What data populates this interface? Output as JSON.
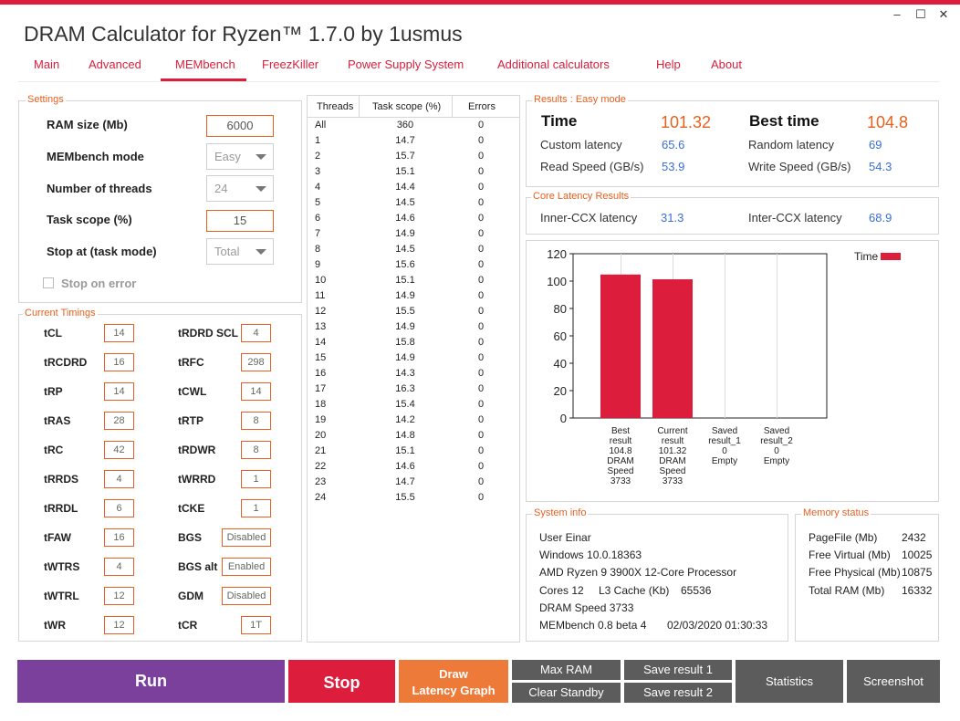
{
  "app": {
    "title": "DRAM Calculator for Ryzen™ 1.7.0 by 1usmus"
  },
  "window": {
    "minimize": "–",
    "maximize": "☐",
    "close": "✕"
  },
  "nav": [
    "Main",
    "Advanced",
    "MEMbench",
    "FreezKiller",
    "Power Supply System",
    "Additional calculators",
    "Help",
    "About"
  ],
  "settings": {
    "group_label": "Settings",
    "ram_size_label": "RAM size (Mb)",
    "ram_size": "6000",
    "mode_label": "MEMbench mode",
    "mode": "Easy",
    "threads_label": "Number of threads",
    "threads": "24",
    "scope_label": "Task scope (%)",
    "scope": "15",
    "stop_label": "Stop at (task mode)",
    "stop": "Total",
    "stop_on_error": "Stop on error"
  },
  "timings": {
    "group_label": "Current Timings",
    "left": [
      {
        "name": "tCL",
        "value": "14"
      },
      {
        "name": "tRCDRD",
        "value": "16"
      },
      {
        "name": "tRP",
        "value": "14"
      },
      {
        "name": "tRAS",
        "value": "28"
      },
      {
        "name": "tRC",
        "value": "42"
      },
      {
        "name": "tRRDS",
        "value": "4"
      },
      {
        "name": "tRRDL",
        "value": "6"
      },
      {
        "name": "tFAW",
        "value": "16"
      },
      {
        "name": "tWTRS",
        "value": "4"
      },
      {
        "name": "tWTRL",
        "value": "12"
      },
      {
        "name": "tWR",
        "value": "12"
      }
    ],
    "right": [
      {
        "name": "tRDRD SCL",
        "value": "4"
      },
      {
        "name": "tRFC",
        "value": "298"
      },
      {
        "name": "tCWL",
        "value": "14"
      },
      {
        "name": "tRTP",
        "value": "8"
      },
      {
        "name": "tRDWR",
        "value": "8"
      },
      {
        "name": "tWRRD",
        "value": "1"
      },
      {
        "name": "tCKE",
        "value": "1"
      },
      {
        "name": "BGS",
        "value": "Disabled"
      },
      {
        "name": "BGS alt",
        "value": "Enabled"
      },
      {
        "name": "GDM",
        "value": "Disabled"
      },
      {
        "name": "tCR",
        "value": "1T"
      }
    ]
  },
  "threads_table": {
    "headers": [
      "Threads",
      "Task scope (%)",
      "Errors"
    ],
    "rows": [
      [
        "All",
        "360",
        "0"
      ],
      [
        "1",
        "14.7",
        "0"
      ],
      [
        "2",
        "15.7",
        "0"
      ],
      [
        "3",
        "15.1",
        "0"
      ],
      [
        "4",
        "14.4",
        "0"
      ],
      [
        "5",
        "14.5",
        "0"
      ],
      [
        "6",
        "14.6",
        "0"
      ],
      [
        "7",
        "14.9",
        "0"
      ],
      [
        "8",
        "14.5",
        "0"
      ],
      [
        "9",
        "15.6",
        "0"
      ],
      [
        "10",
        "15.1",
        "0"
      ],
      [
        "11",
        "14.9",
        "0"
      ],
      [
        "12",
        "15.5",
        "0"
      ],
      [
        "13",
        "14.9",
        "0"
      ],
      [
        "14",
        "15.8",
        "0"
      ],
      [
        "15",
        "14.9",
        "0"
      ],
      [
        "16",
        "14.3",
        "0"
      ],
      [
        "17",
        "16.3",
        "0"
      ],
      [
        "18",
        "15.4",
        "0"
      ],
      [
        "19",
        "14.2",
        "0"
      ],
      [
        "20",
        "14.8",
        "0"
      ],
      [
        "21",
        "15.1",
        "0"
      ],
      [
        "22",
        "14.6",
        "0"
      ],
      [
        "23",
        "14.7",
        "0"
      ],
      [
        "24",
        "15.5",
        "0"
      ]
    ]
  },
  "results": {
    "group_label": "Results : Easy mode",
    "time_label": "Time",
    "time": "101.32",
    "best_label": "Best time",
    "best": "104.8",
    "custom_label": "Custom latency",
    "custom": "65.6",
    "random_label": "Random latency",
    "random": "69",
    "read_label": "Read Speed (GB/s)",
    "read": "53.9",
    "write_label": "Write Speed (GB/s)",
    "write": "54.3"
  },
  "latency": {
    "group_label": "Core Latency Results",
    "inner_label": "Inner-CCX latency",
    "inner": "31.3",
    "inter_label": "Inter-CCX latency",
    "inter": "68.9"
  },
  "chart_data": {
    "type": "bar",
    "categories": [
      [
        "Best",
        "result",
        "104.8",
        "DRAM",
        "Speed",
        "3733"
      ],
      [
        "Current",
        "result",
        "101.32",
        "DRAM",
        "Speed",
        "3733"
      ],
      [
        "Saved",
        "result_1",
        "0",
        "Empty"
      ],
      [
        "Saved",
        "result_2",
        "0",
        "Empty"
      ]
    ],
    "values": [
      104.8,
      101.32,
      0,
      0
    ],
    "series_name": "Time",
    "ylim": [
      0,
      120
    ],
    "yticks": [
      0,
      20,
      40,
      60,
      80,
      100,
      120
    ],
    "bar_color": "#dc1e3c",
    "grid": "vertical",
    "legend": "top-right"
  },
  "system": {
    "group_label": "System info",
    "user": "User Einar",
    "os": "Windows 10.0.18363",
    "cpu": "AMD Ryzen 9 3900X 12-Core Processor",
    "cores": "Cores 12",
    "l3": "L3 Cache (Kb)",
    "l3_value": "65536",
    "dram": "DRAM Speed 3733",
    "version": "MEMbench 0.8 beta 4",
    "datetime": "02/03/2020 01:30:33"
  },
  "memory": {
    "group_label": "Memory status",
    "rows": [
      {
        "label": "PageFile (Mb)",
        "value": "2432"
      },
      {
        "label": "Free Virtual (Mb)",
        "value": "10025"
      },
      {
        "label": "Free Physical (Mb)",
        "value": "10875"
      },
      {
        "label": "Total RAM (Mb)",
        "value": "16332"
      }
    ]
  },
  "buttons": {
    "run": "Run",
    "stop": "Stop",
    "draw_1": "Draw",
    "draw_2": "Latency Graph",
    "max_ram": "Max RAM",
    "clear_standby": "Clear Standby",
    "save1": "Save result 1",
    "save2": "Save result 2",
    "statistics": "Statistics",
    "screenshot": "Screenshot"
  },
  "colors": {
    "accent": "#dc1e3c",
    "orange": "#e8601e",
    "purple": "#7b3f9c",
    "dark": "#5c5c5c",
    "blue": "#3a6ed8"
  }
}
